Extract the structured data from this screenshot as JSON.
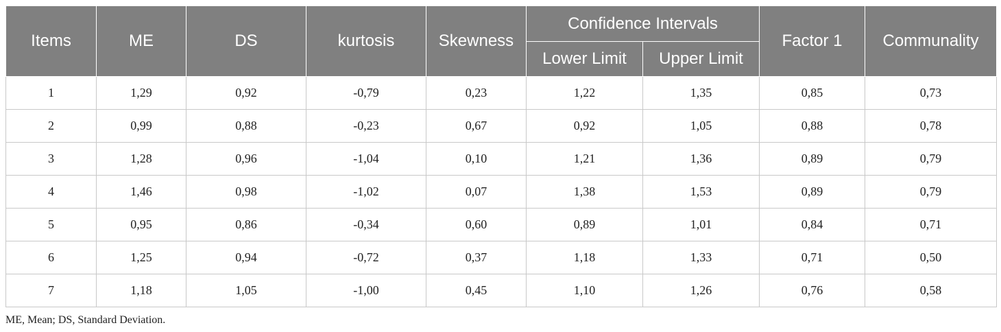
{
  "table": {
    "headers": {
      "items": "Items",
      "me": "ME",
      "ds": "DS",
      "kurtosis": "kurtosis",
      "skewness": "Skewness",
      "ci_group": "Confidence Intervals",
      "lower": "Lower Limit",
      "upper": "Upper Limit",
      "factor1": "Factor 1",
      "communality": "Communality"
    },
    "rows": [
      [
        "1",
        "1,29",
        "0,92",
        "-0,79",
        "0,23",
        "1,22",
        "1,35",
        "0,85",
        "0,73"
      ],
      [
        "2",
        "0,99",
        "0,88",
        "-0,23",
        "0,67",
        "0,92",
        "1,05",
        "0,88",
        "0,78"
      ],
      [
        "3",
        "1,28",
        "0,96",
        "-1,04",
        "0,10",
        "1,21",
        "1,36",
        "0,89",
        "0,79"
      ],
      [
        "4",
        "1,46",
        "0,98",
        "-1,02",
        "0,07",
        "1,38",
        "1,53",
        "0,89",
        "0,79"
      ],
      [
        "5",
        "0,95",
        "0,86",
        "-0,34",
        "0,60",
        "0,89",
        "1,01",
        "0,84",
        "0,71"
      ],
      [
        "6",
        "1,25",
        "0,94",
        "-0,72",
        "0,37",
        "1,18",
        "1,33",
        "0,71",
        "0,50"
      ],
      [
        "7",
        "1,18",
        "1,05",
        "-1,00",
        "0,45",
        "1,10",
        "1,26",
        "0,76",
        "0,58"
      ]
    ]
  },
  "footnote": "ME, Mean; DS, Standard Deviation."
}
